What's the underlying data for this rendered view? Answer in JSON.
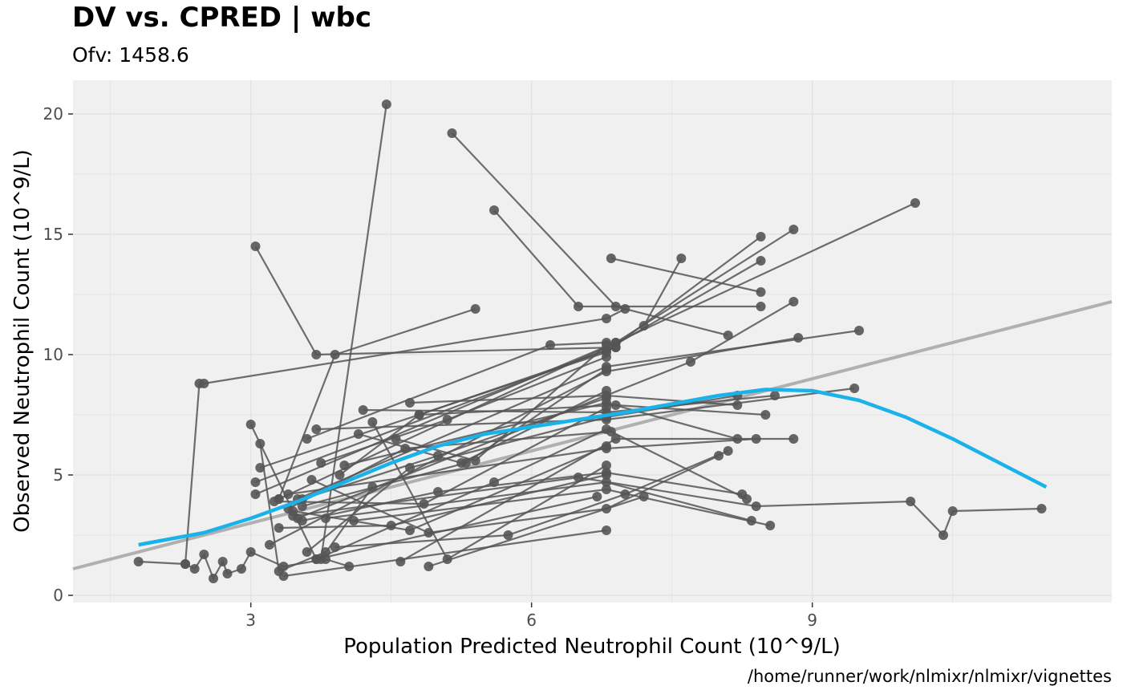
{
  "chart_data": {
    "type": "scatter",
    "title": "DV vs. CPRED | wbc",
    "subtitle": "Ofv: 1458.6",
    "xlabel": "Population Predicted Neutrophil Count (10^9/L)",
    "ylabel": "Observed Neutrophil Count (10^9/L)",
    "caption": "/home/runner/work/nlmixr/nlmixr/vignettes",
    "xlim": [
      1.1,
      12.2
    ],
    "ylim": [
      -0.3,
      21.4
    ],
    "x_ticks": [
      3,
      6,
      9
    ],
    "y_ticks": [
      0,
      5,
      10,
      15,
      20
    ],
    "grid": true,
    "legend": "none",
    "colors": {
      "panel_background": "#f0f0f0",
      "grid": "#e2e2e2",
      "points_lines": "#555555",
      "smooth": "#1ab2e8",
      "identity": "#b0b0b0"
    },
    "series": [
      {
        "points": [
          [
            1.8,
            1.4
          ],
          [
            2.3,
            1.3
          ],
          [
            2.4,
            1.1
          ],
          [
            2.5,
            1.7
          ],
          [
            2.6,
            0.7
          ],
          [
            2.7,
            1.4
          ],
          [
            2.75,
            0.9
          ],
          [
            2.9,
            1.1
          ],
          [
            3.0,
            1.8
          ],
          [
            3.35,
            1.2
          ],
          [
            3.8,
            1.5
          ],
          [
            4.05,
            1.2
          ]
        ]
      },
      {
        "points": [
          [
            2.5,
            8.8
          ],
          [
            6.8,
            11.5
          ],
          [
            7.0,
            11.9
          ]
        ]
      },
      {
        "points": [
          [
            2.3,
            1.3
          ],
          [
            2.45,
            8.8
          ]
        ]
      },
      {
        "points": [
          [
            3.05,
            14.5
          ],
          [
            3.7,
            10.0
          ],
          [
            6.9,
            10.3
          ]
        ]
      },
      {
        "points": [
          [
            4.45,
            20.4
          ],
          [
            3.75,
            1.5
          ],
          [
            4.3,
            4.5
          ]
        ]
      },
      {
        "points": [
          [
            5.15,
            19.2
          ],
          [
            6.9,
            12.0
          ],
          [
            8.1,
            10.8
          ]
        ]
      },
      {
        "points": [
          [
            5.6,
            16.0
          ],
          [
            6.5,
            12.0
          ],
          [
            8.45,
            12.0
          ]
        ]
      },
      {
        "points": [
          [
            5.4,
            11.9
          ],
          [
            3.9,
            10.0
          ],
          [
            3.3,
            4.0
          ]
        ]
      },
      {
        "points": [
          [
            6.85,
            14.0
          ],
          [
            8.45,
            12.6
          ]
        ]
      },
      {
        "points": [
          [
            7.6,
            14.0
          ],
          [
            7.2,
            11.2
          ]
        ]
      },
      {
        "points": [
          [
            3.0,
            7.1
          ],
          [
            3.7,
            1.5
          ],
          [
            6.7,
            4.1
          ]
        ]
      },
      {
        "points": [
          [
            3.1,
            6.3
          ],
          [
            3.3,
            1.0
          ],
          [
            3.8,
            1.8
          ]
        ]
      },
      {
        "points": [
          [
            3.3,
            4.0
          ],
          [
            6.9,
            10.5
          ],
          [
            10.1,
            16.3
          ]
        ]
      },
      {
        "points": [
          [
            3.05,
            4.2
          ],
          [
            6.9,
            10.5
          ],
          [
            8.8,
            15.2
          ]
        ]
      },
      {
        "points": [
          [
            3.1,
            5.3
          ],
          [
            6.8,
            10.1
          ],
          [
            8.45,
            14.9
          ]
        ]
      },
      {
        "points": [
          [
            3.05,
            4.7
          ],
          [
            6.8,
            10.2
          ],
          [
            8.45,
            13.9
          ]
        ]
      },
      {
        "points": [
          [
            3.5,
            3.2
          ],
          [
            7.7,
            9.7
          ],
          [
            8.8,
            12.2
          ]
        ]
      },
      {
        "points": [
          [
            3.5,
            4.0
          ],
          [
            6.8,
            9.5
          ],
          [
            9.5,
            11.0
          ]
        ]
      },
      {
        "points": [
          [
            3.2,
            2.1
          ],
          [
            6.8,
            9.3
          ],
          [
            8.85,
            10.7
          ]
        ]
      },
      {
        "points": [
          [
            3.6,
            6.5
          ],
          [
            6.2,
            10.4
          ],
          [
            6.8,
            10.5
          ]
        ]
      },
      {
        "points": [
          [
            3.7,
            6.9
          ],
          [
            6.8,
            7.3
          ],
          [
            9.45,
            8.6
          ]
        ]
      },
      {
        "points": [
          [
            4.2,
            7.7
          ],
          [
            6.8,
            7.6
          ],
          [
            8.6,
            8.3
          ]
        ]
      },
      {
        "points": [
          [
            4.7,
            8.0
          ],
          [
            6.8,
            8.3
          ],
          [
            8.2,
            7.9
          ]
        ]
      },
      {
        "points": [
          [
            4.8,
            7.5
          ],
          [
            6.9,
            7.9
          ],
          [
            8.5,
            7.5
          ]
        ]
      },
      {
        "points": [
          [
            4.0,
            5.4
          ],
          [
            6.8,
            8.0
          ],
          [
            8.2,
            6.5
          ]
        ]
      },
      {
        "points": [
          [
            3.4,
            4.2
          ],
          [
            6.8,
            6.1
          ],
          [
            8.4,
            6.5
          ]
        ]
      },
      {
        "points": [
          [
            3.45,
            3.3
          ],
          [
            6.5,
            4.9
          ],
          [
            8.4,
            3.7
          ],
          [
            10.05,
            3.9
          ],
          [
            10.4,
            2.5
          ],
          [
            10.5,
            3.5
          ],
          [
            11.45,
            3.6
          ]
        ]
      },
      {
        "points": [
          [
            3.8,
            3.2
          ],
          [
            6.8,
            4.7
          ],
          [
            8.35,
            3.1
          ]
        ]
      },
      {
        "points": [
          [
            4.1,
            3.1
          ],
          [
            6.8,
            4.4
          ],
          [
            8.55,
            2.9
          ]
        ]
      },
      {
        "points": [
          [
            3.35,
            0.8
          ],
          [
            6.8,
            2.7
          ]
        ]
      },
      {
        "points": [
          [
            4.9,
            1.2
          ],
          [
            7.2,
            4.1
          ]
        ]
      },
      {
        "points": [
          [
            4.6,
            1.4
          ],
          [
            6.9,
            6.5
          ],
          [
            8.8,
            6.5
          ]
        ]
      },
      {
        "points": [
          [
            4.3,
            7.2
          ],
          [
            5.1,
            1.5
          ],
          [
            6.8,
            5.4
          ]
        ]
      },
      {
        "points": [
          [
            4.55,
            6.5
          ],
          [
            5.4,
            5.6
          ],
          [
            6.8,
            10.4
          ]
        ]
      },
      {
        "points": [
          [
            3.6,
            1.8
          ],
          [
            4.7,
            5.3
          ],
          [
            6.8,
            7.4
          ],
          [
            8.2,
            8.3
          ]
        ]
      },
      {
        "points": [
          [
            3.55,
            3.1
          ],
          [
            5.0,
            4.3
          ],
          [
            6.8,
            5.1
          ],
          [
            8.25,
            4.2
          ]
        ]
      },
      {
        "points": [
          [
            3.7,
            1.5
          ],
          [
            5.6,
            4.7
          ],
          [
            6.8,
            6.9
          ],
          [
            8.3,
            4.0
          ]
        ]
      },
      {
        "points": [
          [
            3.65,
            4.8
          ],
          [
            4.9,
            2.6
          ],
          [
            6.8,
            3.6
          ],
          [
            8.0,
            5.8
          ]
        ]
      },
      {
        "points": [
          [
            3.9,
            2.0
          ],
          [
            5.75,
            2.5
          ],
          [
            7.0,
            4.2
          ],
          [
            8.1,
            6.0
          ]
        ]
      },
      {
        "points": [
          [
            3.95,
            5.0
          ],
          [
            4.8,
            7.5
          ],
          [
            6.9,
            10.3
          ]
        ]
      },
      {
        "points": [
          [
            3.55,
            3.7
          ],
          [
            5.3,
            5.5
          ],
          [
            6.8,
            9.4
          ]
        ]
      },
      {
        "points": [
          [
            3.75,
            5.5
          ],
          [
            5.1,
            7.3
          ],
          [
            6.8,
            9.9
          ]
        ]
      },
      {
        "points": [
          [
            4.15,
            6.7
          ],
          [
            5.25,
            5.5
          ],
          [
            6.8,
            8.5
          ]
        ]
      },
      {
        "points": [
          [
            3.3,
            2.8
          ],
          [
            4.5,
            2.9
          ],
          [
            6.8,
            5.0
          ]
        ]
      },
      {
        "points": [
          [
            3.45,
            3.5
          ],
          [
            4.7,
            2.7
          ],
          [
            6.8,
            6.2
          ]
        ]
      },
      {
        "points": [
          [
            3.25,
            3.9
          ],
          [
            4.85,
            3.8
          ],
          [
            6.8,
            7.8
          ]
        ]
      },
      {
        "points": [
          [
            3.55,
            4.0
          ],
          [
            5.0,
            5.8
          ],
          [
            6.8,
            8.2
          ]
        ]
      },
      {
        "points": [
          [
            3.4,
            3.6
          ],
          [
            4.65,
            6.1
          ],
          [
            6.85,
            6.8
          ]
        ]
      }
    ],
    "smooth_curve": [
      [
        1.8,
        2.1
      ],
      [
        2.5,
        2.6
      ],
      [
        3.0,
        3.2
      ],
      [
        3.5,
        3.9
      ],
      [
        4.0,
        4.7
      ],
      [
        4.5,
        5.5
      ],
      [
        5.0,
        6.2
      ],
      [
        5.5,
        6.7
      ],
      [
        6.0,
        7.0
      ],
      [
        6.5,
        7.3
      ],
      [
        7.0,
        7.6
      ],
      [
        7.5,
        7.95
      ],
      [
        8.0,
        8.3
      ],
      [
        8.5,
        8.55
      ],
      [
        9.0,
        8.5
      ],
      [
        9.5,
        8.1
      ],
      [
        10.0,
        7.4
      ],
      [
        10.5,
        6.5
      ],
      [
        11.0,
        5.5
      ],
      [
        11.5,
        4.5
      ]
    ]
  }
}
